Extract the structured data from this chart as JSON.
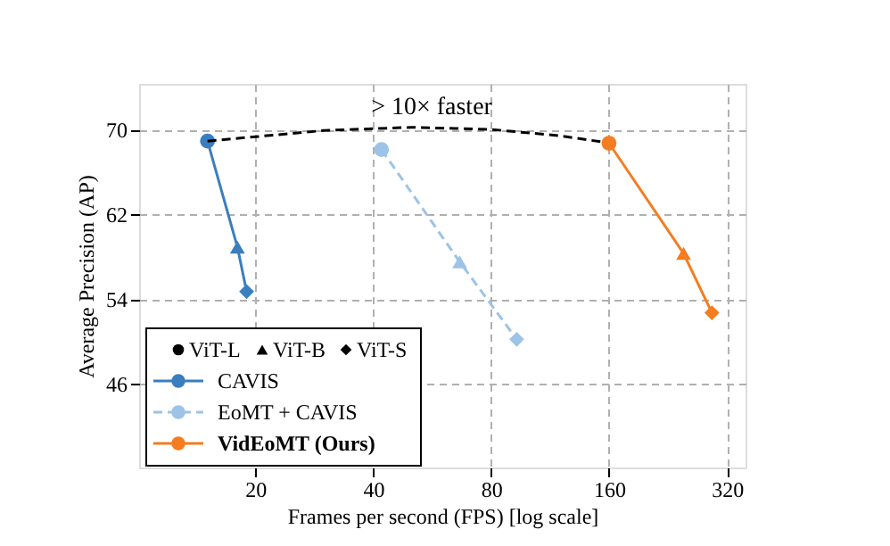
{
  "chart_data": {
    "type": "line",
    "xlabel": "Frames per second (FPS) [log scale]",
    "ylabel": "Average Precision (AP)",
    "log": "x",
    "xlim": [
      10.1,
      357
    ],
    "xticks": [
      20,
      40,
      80,
      160,
      320
    ],
    "ylim": [
      38.1,
      74.3
    ],
    "yticks": [
      46,
      54,
      62,
      70
    ],
    "grid": true,
    "legend": "bottom left",
    "annotations": [
      "> 10× faster"
    ],
    "series": [
      {
        "name": "ViT-L",
        "type": "scatter",
        "color": "#000000",
        "marker": "circle"
      },
      {
        "name": "ViT-B",
        "type": "scatter",
        "color": "#000000",
        "marker": "triangle"
      },
      {
        "name": "ViT-S",
        "type": "scatter",
        "color": "#000000",
        "marker": "diamond"
      },
      {
        "name": "CAVIS",
        "color": "#3a7ebf",
        "line_style": "solid",
        "marker": [
          "circle",
          "triangle",
          "diamond"
        ],
        "x": [
          15.1,
          18.0,
          19.0
        ],
        "values": [
          68.9,
          58.9,
          54.7
        ]
      },
      {
        "name": "EoMT + CAVIS",
        "color": "#9dc3e6",
        "line_style": "dashed",
        "marker": [
          "circle",
          "triangle",
          "diamond"
        ],
        "x": [
          42.0,
          66.5,
          93
        ],
        "values": [
          68.1,
          57.5,
          50.2
        ]
      },
      {
        "name": "VidEoMT (Ours)",
        "color": "#f57c20",
        "line_style": "solid",
        "marker": [
          "circle",
          "triangle",
          "diamond"
        ],
        "x": [
          160,
          248,
          293
        ],
        "values": [
          68.7,
          58.3,
          52.7
        ]
      },
      {
        "color": "#000000",
        "line_style": "dashed",
        "marker": "none",
        "x": [
          15.1,
          30,
          50,
          80,
          120,
          155
        ],
        "values": [
          68.9,
          69.9,
          70.2,
          70.0,
          69.4,
          68.8
        ]
      }
    ]
  }
}
